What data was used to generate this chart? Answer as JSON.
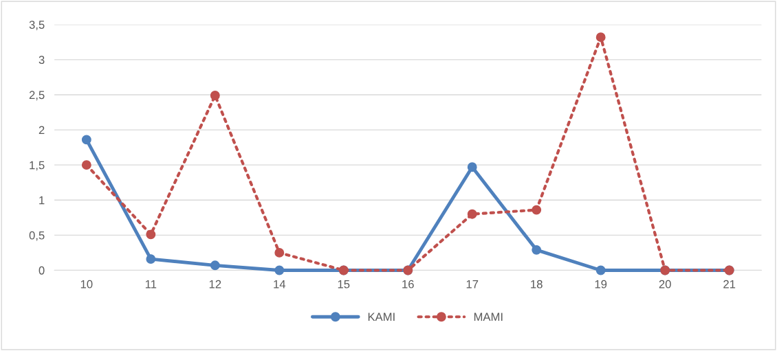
{
  "chart_data": {
    "type": "line",
    "categories": [
      "10",
      "11",
      "12",
      "14",
      "15",
      "16",
      "17",
      "18",
      "19",
      "20",
      "21"
    ],
    "series": [
      {
        "name": "KAMI",
        "color": "#4f81bd",
        "line_style": "solid",
        "values": [
          1.86,
          0.16,
          0.07,
          0,
          0,
          0,
          1.47,
          0.29,
          0,
          0,
          0
        ]
      },
      {
        "name": "MAMI",
        "color": "#c0504d",
        "line_style": "dotted",
        "values": [
          1.5,
          0.51,
          2.49,
          0.25,
          0,
          0,
          0.8,
          0.86,
          3.32,
          0,
          0
        ]
      }
    ],
    "ylim": [
      0,
      3.5
    ],
    "yticks": [
      {
        "value": 0,
        "label": "0"
      },
      {
        "value": 0.5,
        "label": "0,5"
      },
      {
        "value": 1,
        "label": "1"
      },
      {
        "value": 1.5,
        "label": "1,5"
      },
      {
        "value": 2,
        "label": "2"
      },
      {
        "value": 2.5,
        "label": "2,5"
      },
      {
        "value": 3,
        "label": "3"
      },
      {
        "value": 3.5,
        "label": "3,5"
      }
    ],
    "grid": "y",
    "legend": "bottom",
    "marker": "circle"
  }
}
